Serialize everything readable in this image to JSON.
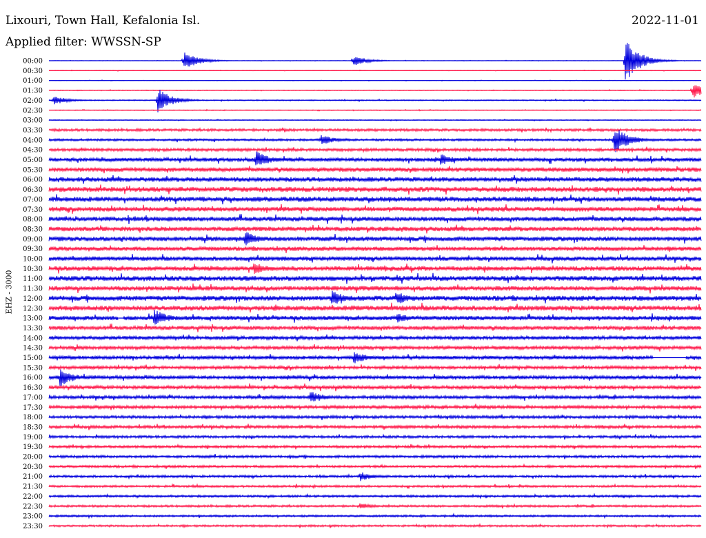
{
  "header": {
    "station": "Lixouri, Town Hall, Kefalonia Isl.",
    "date": "2022-11-01",
    "filter": "Applied filter: WWSSN-SP"
  },
  "channel_label": "EHZ - 3000",
  "colors": {
    "trace_a": "#0000dd",
    "trace_b": "#ff1a4b"
  },
  "chart_data": {
    "type": "line",
    "chart_kind": "helicorder",
    "row_labels": [
      "00:00",
      "00:30",
      "01:00",
      "01:30",
      "02:00",
      "02:30",
      "03:00",
      "03:30",
      "04:00",
      "04:30",
      "05:00",
      "05:30",
      "06:00",
      "06:30",
      "07:00",
      "07:30",
      "08:00",
      "08:30",
      "09:00",
      "09:30",
      "10:00",
      "10:30",
      "11:00",
      "11:30",
      "12:00",
      "12:30",
      "13:00",
      "13:30",
      "14:00",
      "14:30",
      "15:00",
      "15:30",
      "16:00",
      "16:30",
      "17:00",
      "17:30",
      "18:00",
      "18:30",
      "19:00",
      "19:30",
      "20:00",
      "20:30",
      "21:00",
      "21:30",
      "22:00",
      "22:30",
      "23:00",
      "23:30"
    ],
    "row_minutes": 30,
    "trace_colors_alternate": [
      "#0000dd",
      "#ff1a4b"
    ],
    "noise_level": [
      0.3,
      0.3,
      0.3,
      0.4,
      0.6,
      0.4,
      0.5,
      1.4,
      1.2,
      1.6,
      2.2,
      2.4,
      2.6,
      2.8,
      2.8,
      2.6,
      2.6,
      2.6,
      2.6,
      2.4,
      2.4,
      2.6,
      2.8,
      2.6,
      2.8,
      2.8,
      2.4,
      2.2,
      2.0,
      2.0,
      2.0,
      1.8,
      2.0,
      2.0,
      1.8,
      1.8,
      1.6,
      1.6,
      1.4,
      1.4,
      1.4,
      1.3,
      1.3,
      1.2,
      1.2,
      1.2,
      1.1,
      1.1
    ],
    "events": [
      {
        "row": 0,
        "minute": 6.2,
        "amplitude": 14
      },
      {
        "row": 0,
        "minute": 14.0,
        "amplitude": 8
      },
      {
        "row": 0,
        "minute": 26.5,
        "amplitude": 34
      },
      {
        "row": 3,
        "minute": 29.6,
        "amplitude": 12
      },
      {
        "row": 4,
        "minute": 0.2,
        "amplitude": 7
      },
      {
        "row": 4,
        "minute": 5.0,
        "amplitude": 18
      },
      {
        "row": 8,
        "minute": 26.0,
        "amplitude": 22
      },
      {
        "row": 8,
        "minute": 12.5,
        "amplitude": 8
      },
      {
        "row": 10,
        "minute": 9.5,
        "amplitude": 14
      },
      {
        "row": 10,
        "minute": 18.0,
        "amplitude": 9
      },
      {
        "row": 18,
        "minute": 9.0,
        "amplitude": 12
      },
      {
        "row": 21,
        "minute": 9.4,
        "amplitude": 10
      },
      {
        "row": 24,
        "minute": 13.0,
        "amplitude": 12
      },
      {
        "row": 24,
        "minute": 16.0,
        "amplitude": 10
      },
      {
        "row": 26,
        "minute": 4.8,
        "amplitude": 14
      },
      {
        "row": 26,
        "minute": 16.0,
        "amplitude": 8
      },
      {
        "row": 30,
        "minute": 14.0,
        "amplitude": 10
      },
      {
        "row": 32,
        "minute": 0.5,
        "amplitude": 14
      },
      {
        "row": 34,
        "minute": 12.0,
        "amplitude": 10
      },
      {
        "row": 42,
        "minute": 14.3,
        "amplitude": 7
      },
      {
        "row": 45,
        "minute": 14.3,
        "amplitude": 5
      }
    ],
    "gaps": [
      {
        "row": 26,
        "from_minute": 3.2,
        "to_minute": 3.4
      },
      {
        "row": 30,
        "from_minute": 27.8,
        "to_minute": 29.3
      }
    ],
    "tick_labels_y": "row_labels",
    "xlabel": "",
    "ylabel": ""
  }
}
